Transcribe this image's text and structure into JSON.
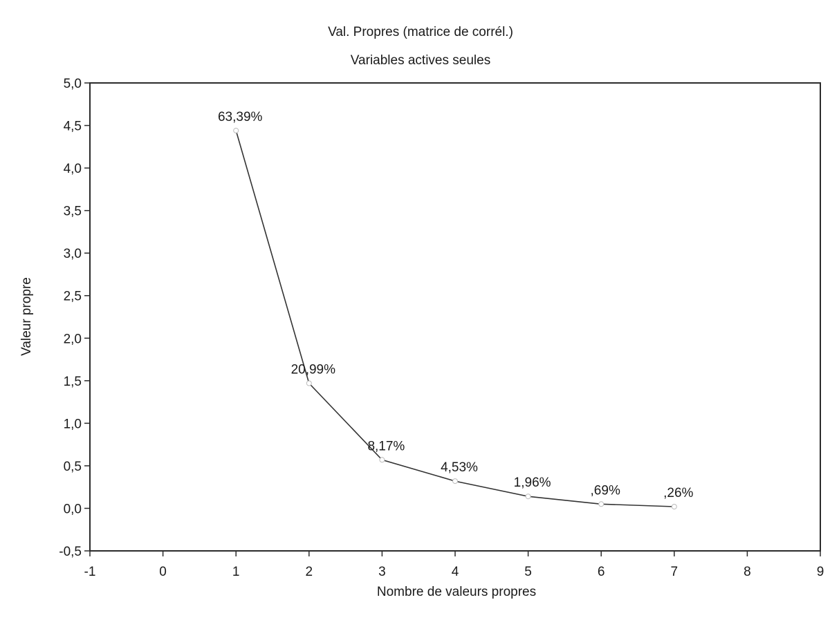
{
  "chart_data": {
    "type": "line",
    "title": "Val. Propres (matrice de corrél.)",
    "subtitle": "Variables actives seules",
    "xlabel": "Nombre de valeurs propres",
    "ylabel": "Valeur propre",
    "xlim": [
      -1,
      9
    ],
    "ylim": [
      -0.5,
      5.0
    ],
    "x_ticks": [
      "-1",
      "0",
      "1",
      "2",
      "3",
      "4",
      "5",
      "6",
      "7",
      "8",
      "9"
    ],
    "y_ticks": [
      "-0,5",
      "0,0",
      "0,5",
      "1,0",
      "1,5",
      "2,0",
      "2,5",
      "3,0",
      "3,5",
      "4,0",
      "4,5",
      "5,0"
    ],
    "grid": false,
    "x": [
      1,
      2,
      3,
      4,
      5,
      6,
      7
    ],
    "values": [
      4.44,
      1.47,
      0.57,
      0.32,
      0.14,
      0.05,
      0.02
    ],
    "data_labels": [
      "63,39%",
      "20,99%",
      "8,17%",
      "4,53%",
      "1,96%",
      ",69%",
      ",26%"
    ],
    "line_color": "#333333"
  }
}
